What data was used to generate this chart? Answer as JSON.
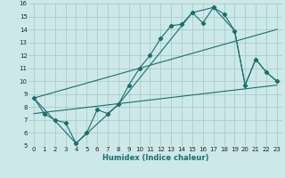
{
  "xlabel": "Humidex (Indice chaleur)",
  "xlim": [
    -0.5,
    23.5
  ],
  "ylim": [
    5,
    16
  ],
  "xticks": [
    0,
    1,
    2,
    3,
    4,
    5,
    6,
    7,
    8,
    9,
    10,
    11,
    12,
    13,
    14,
    15,
    16,
    17,
    18,
    19,
    20,
    21,
    22,
    23
  ],
  "yticks": [
    5,
    6,
    7,
    8,
    9,
    10,
    11,
    12,
    13,
    14,
    15,
    16
  ],
  "bg_color": "#cde8e8",
  "grid_color": "#a8cccc",
  "line_color": "#1a6e6e",
  "line1_x": [
    0,
    1,
    2,
    3,
    4,
    5,
    6,
    7,
    8,
    9,
    10,
    11,
    12,
    13,
    14,
    15,
    16,
    17,
    18,
    19,
    20,
    21,
    22,
    23
  ],
  "line1_y": [
    8.7,
    7.5,
    7.0,
    6.8,
    5.2,
    6.0,
    7.8,
    7.5,
    8.2,
    9.7,
    11.0,
    12.0,
    13.3,
    14.3,
    14.4,
    15.3,
    14.5,
    15.7,
    15.2,
    13.9,
    9.7,
    11.7,
    10.7,
    10.0
  ],
  "line2_x": [
    0,
    4,
    8,
    15,
    17,
    19,
    20,
    21,
    22,
    23
  ],
  "line2_y": [
    8.7,
    5.2,
    8.2,
    15.3,
    15.7,
    13.9,
    9.7,
    11.7,
    10.7,
    10.0
  ],
  "line3_x": [
    0,
    23
  ],
  "line3_y": [
    7.5,
    9.7
  ],
  "line4_x": [
    0,
    23
  ],
  "line4_y": [
    8.7,
    14.0
  ]
}
